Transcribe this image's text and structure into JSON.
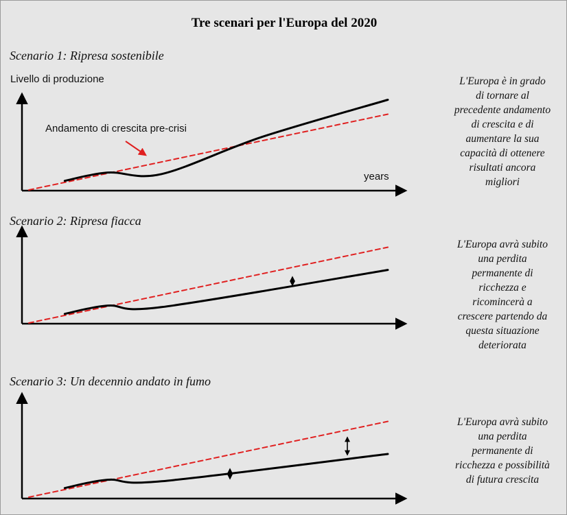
{
  "title": "Tre scenari per l'Europa del 2020",
  "colors": {
    "background": "#e6e6e6",
    "trend_line": "#e02020",
    "actual_line": "#000000",
    "annotation_arrow": "#e02020"
  },
  "panels": [
    {
      "label": "Scenario 1: Ripresa sostenibile",
      "ylabel": "Livello di produzione",
      "xlabel": "years",
      "annotation": "Andamento di crescita pre-crisi",
      "description": [
        "L'Europa è in grado",
        "di tornare al",
        "precedente andamento",
        "di crescita e di",
        "aumentare la sua",
        "capacità di ottenere",
        "risultati ancora",
        "migliori"
      ]
    },
    {
      "label": "Scenario 2: Ripresa fiacca",
      "description": [
        "L'Europa avrà subito",
        "una perdita",
        "permanente di",
        "ricchezza e",
        "ricomincerà a",
        "crescere partendo da",
        "questa situazione",
        "deteriorata"
      ]
    },
    {
      "label": "Scenario 3: Un decennio andato in fumo",
      "description": [
        "L'Europa avrà subito",
        "una perdita",
        "permanente di",
        "ricchezza e possibilità",
        "di futura crescita"
      ]
    }
  ],
  "chart_data": [
    {
      "type": "line",
      "title": "Scenario 1: Ripresa sostenibile",
      "ylabel": "Livello di produzione",
      "xlabel": "years",
      "series": [
        {
          "name": "Andamento di crescita pre-crisi",
          "style": "dashed",
          "x": [
            0,
            10
          ],
          "y": [
            0,
            10
          ]
        },
        {
          "style": "solid",
          "x": [
            1,
            2.2,
            3.7,
            6.5,
            10
          ],
          "y": [
            1.2,
            2.3,
            2.1,
            7.0,
            11.9
          ]
        }
      ]
    },
    {
      "type": "line",
      "title": "Scenario 2: Ripresa fiacca",
      "series": [
        {
          "style": "dashed",
          "x": [
            0,
            10
          ],
          "y": [
            0,
            10
          ]
        },
        {
          "style": "solid",
          "x": [
            1,
            2.2,
            3.7,
            10
          ],
          "y": [
            1.2,
            2.3,
            2.1,
            7.0
          ]
        }
      ]
    },
    {
      "type": "line",
      "title": "Scenario 3: Un decennio andato in fumo",
      "series": [
        {
          "style": "dashed",
          "x": [
            0,
            10
          ],
          "y": [
            0,
            10
          ]
        },
        {
          "style": "solid",
          "x": [
            1,
            2.2,
            3.7,
            10
          ],
          "y": [
            1.2,
            2.3,
            2.1,
            5.7
          ]
        }
      ]
    }
  ]
}
